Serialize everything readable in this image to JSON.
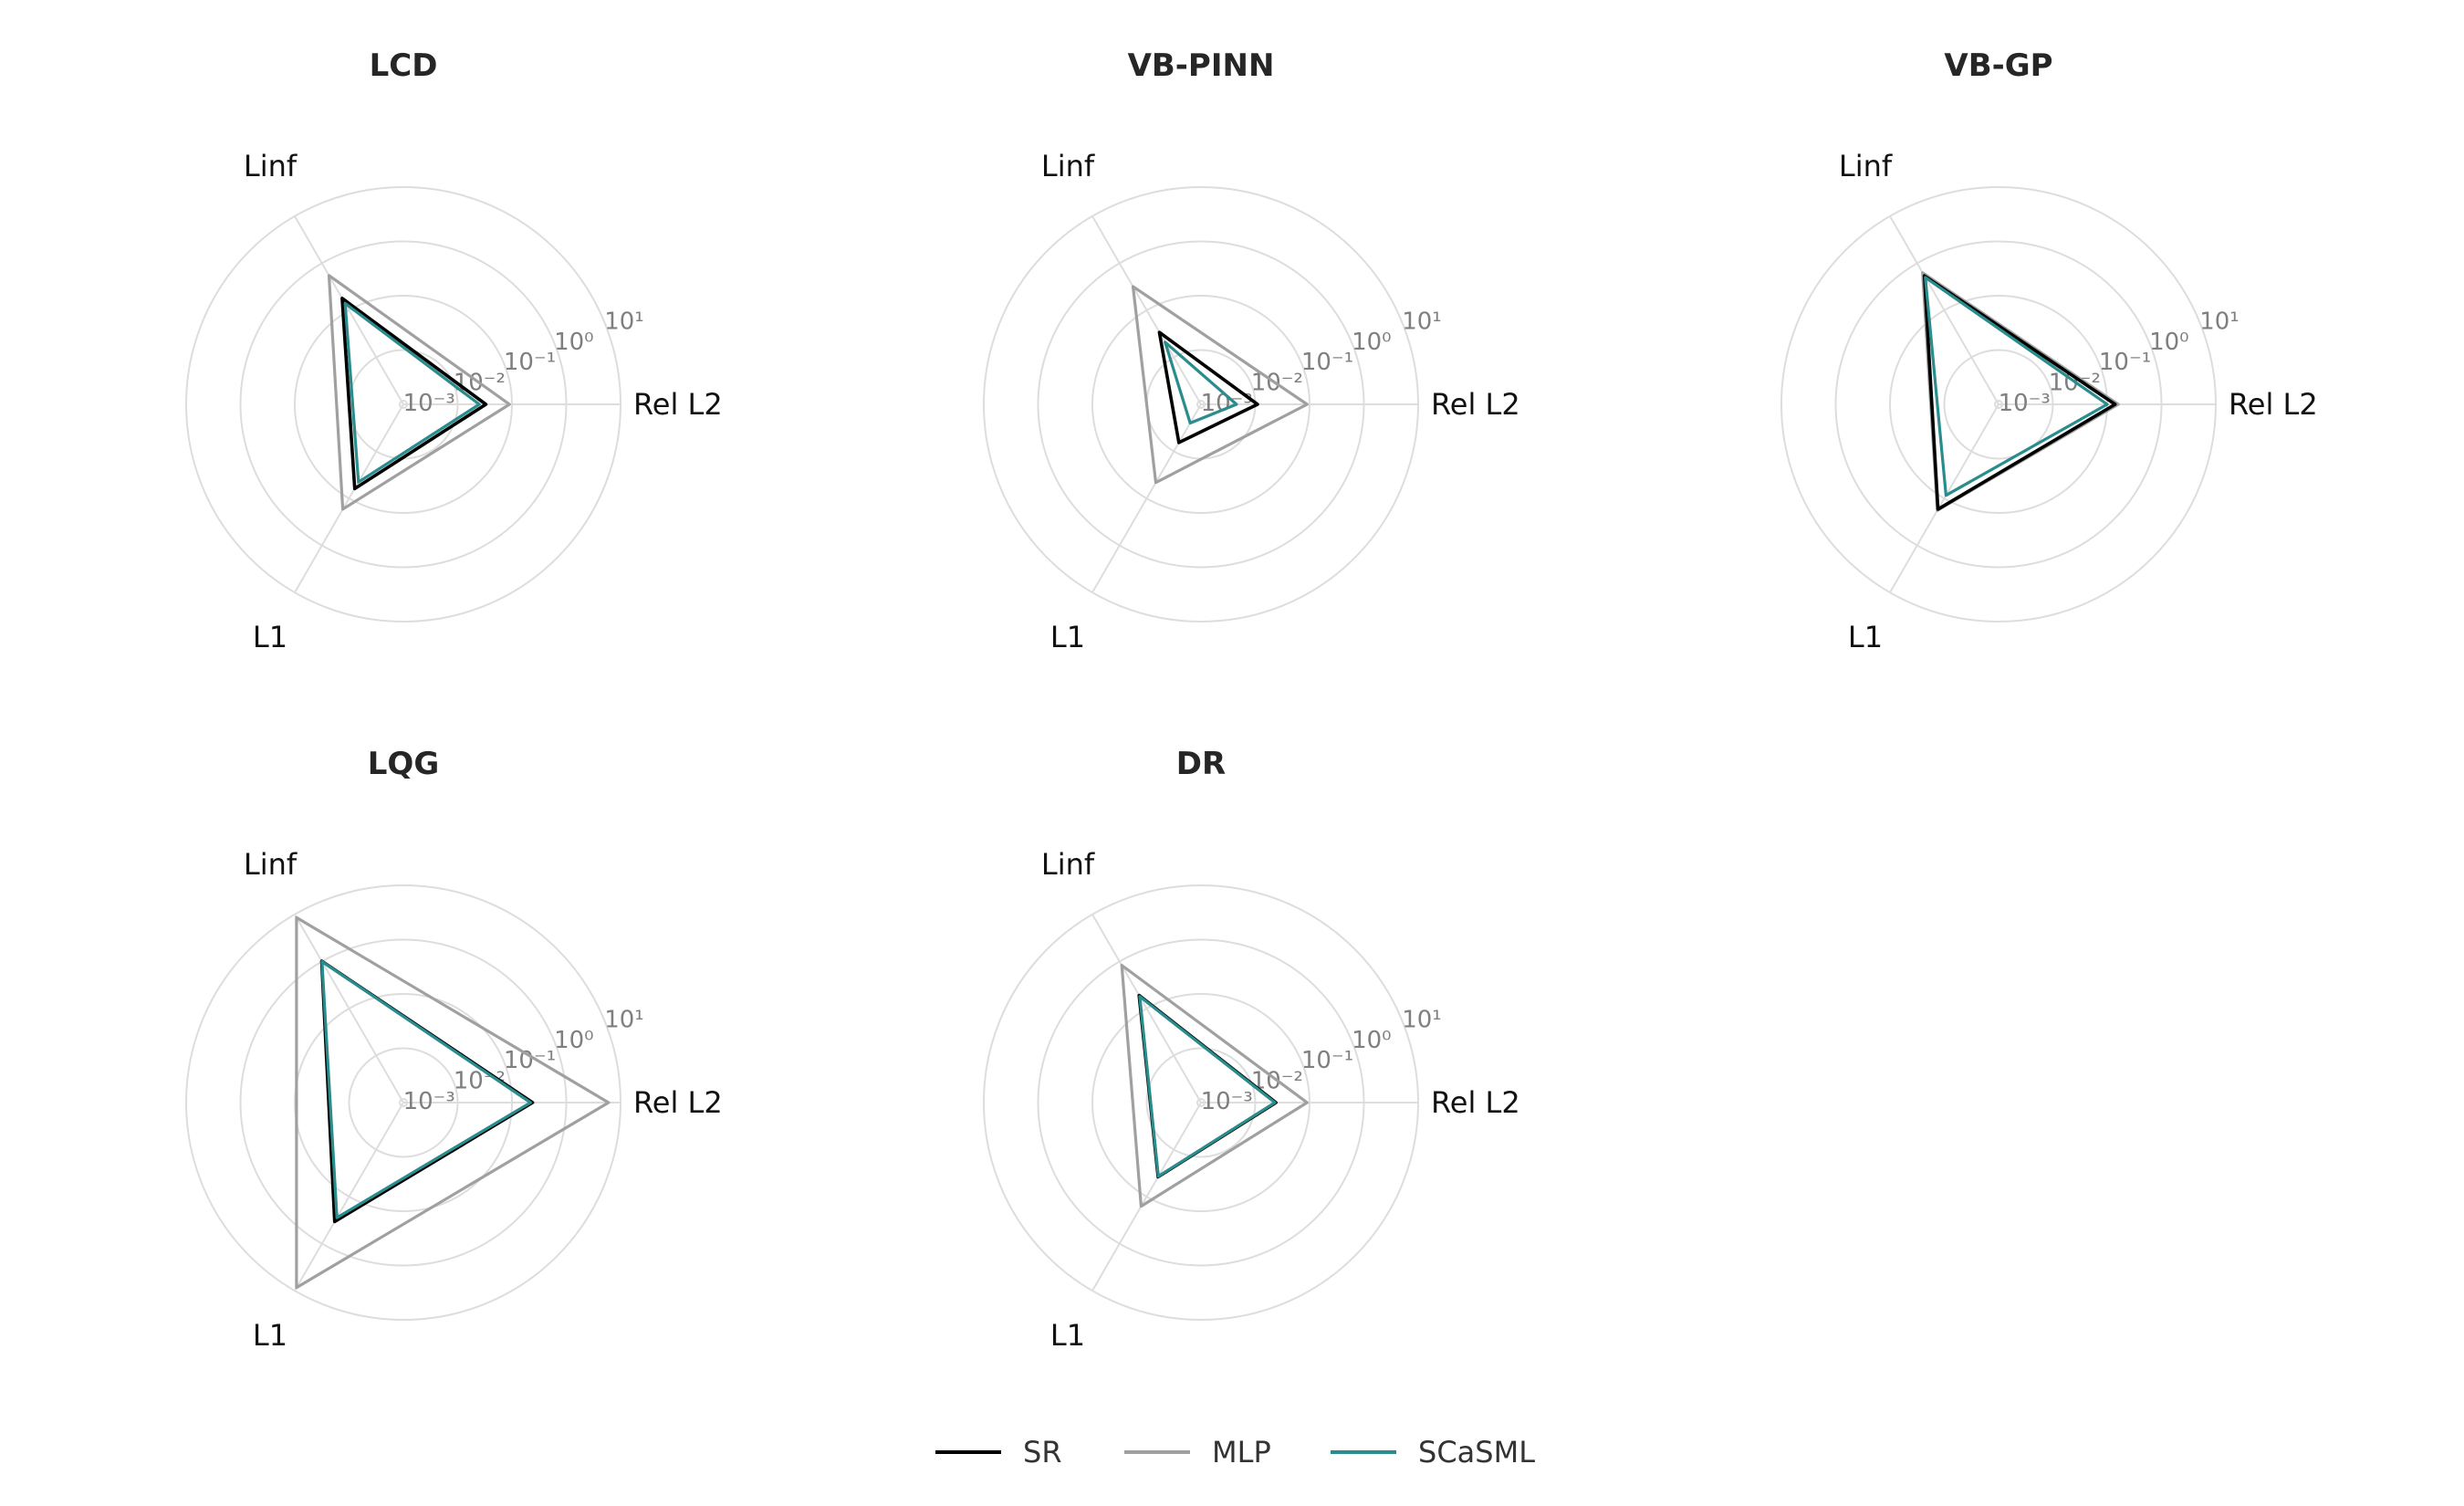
{
  "chart_data": {
    "type": "radar",
    "scale": "log",
    "axes": [
      "Rel L2",
      "Linf",
      "L1"
    ],
    "ring_labels": [
      "10⁻³",
      "10⁻²",
      "10⁻¹",
      "10⁰",
      "10¹"
    ],
    "ring_values": [
      0.001,
      0.01,
      0.1,
      1,
      10
    ],
    "rlim": [
      0.001,
      10
    ],
    "grid": true,
    "legend_position": "bottom-center",
    "series_styles": [
      {
        "name": "SR",
        "color": "#000000"
      },
      {
        "name": "MLP",
        "color": "#a0a0a0"
      },
      {
        "name": "SCaSML",
        "color": "#2a8c8c"
      }
    ],
    "panels": [
      {
        "title": "LCD",
        "series": [
          {
            "name": "SR",
            "values": [
              0.033,
              0.18,
              0.062
            ]
          },
          {
            "name": "MLP",
            "values": [
              0.09,
              0.55,
              0.17
            ]
          },
          {
            "name": "SCaSML",
            "values": [
              0.025,
              0.14,
              0.045
            ]
          }
        ]
      },
      {
        "title": "VB-PINN",
        "series": [
          {
            "name": "SR",
            "values": [
              0.011,
              0.034,
              0.0065
            ]
          },
          {
            "name": "MLP",
            "values": [
              0.09,
              0.32,
              0.046
            ]
          },
          {
            "name": "SCaSML",
            "values": [
              0.0045,
              0.021,
              0.0025
            ]
          }
        ]
      },
      {
        "title": "VB-GP",
        "series": [
          {
            "name": "SR",
            "values": [
              0.14,
              0.54,
              0.17
            ]
          },
          {
            "name": "MLP",
            "values": [
              0.16,
              0.63,
              0.18
            ]
          },
          {
            "name": "SCaSML",
            "values": [
              0.1,
              0.5,
              0.086
            ]
          }
        ]
      },
      {
        "title": "LQG",
        "series": [
          {
            "name": "SR",
            "values": [
              0.24,
              1.02,
              0.34
            ]
          },
          {
            "name": "MLP",
            "values": [
              6.0,
              8.6,
              8.6
            ]
          },
          {
            "name": "SCaSML",
            "values": [
              0.22,
              1.0,
              0.28
            ]
          }
        ]
      },
      {
        "title": "DR",
        "series": [
          {
            "name": "SR",
            "values": [
              0.024,
              0.19,
              0.038
            ]
          },
          {
            "name": "MLP",
            "values": [
              0.09,
              0.83,
              0.16
            ]
          },
          {
            "name": "SCaSML",
            "values": [
              0.023,
              0.18,
              0.037
            ]
          }
        ]
      }
    ]
  }
}
